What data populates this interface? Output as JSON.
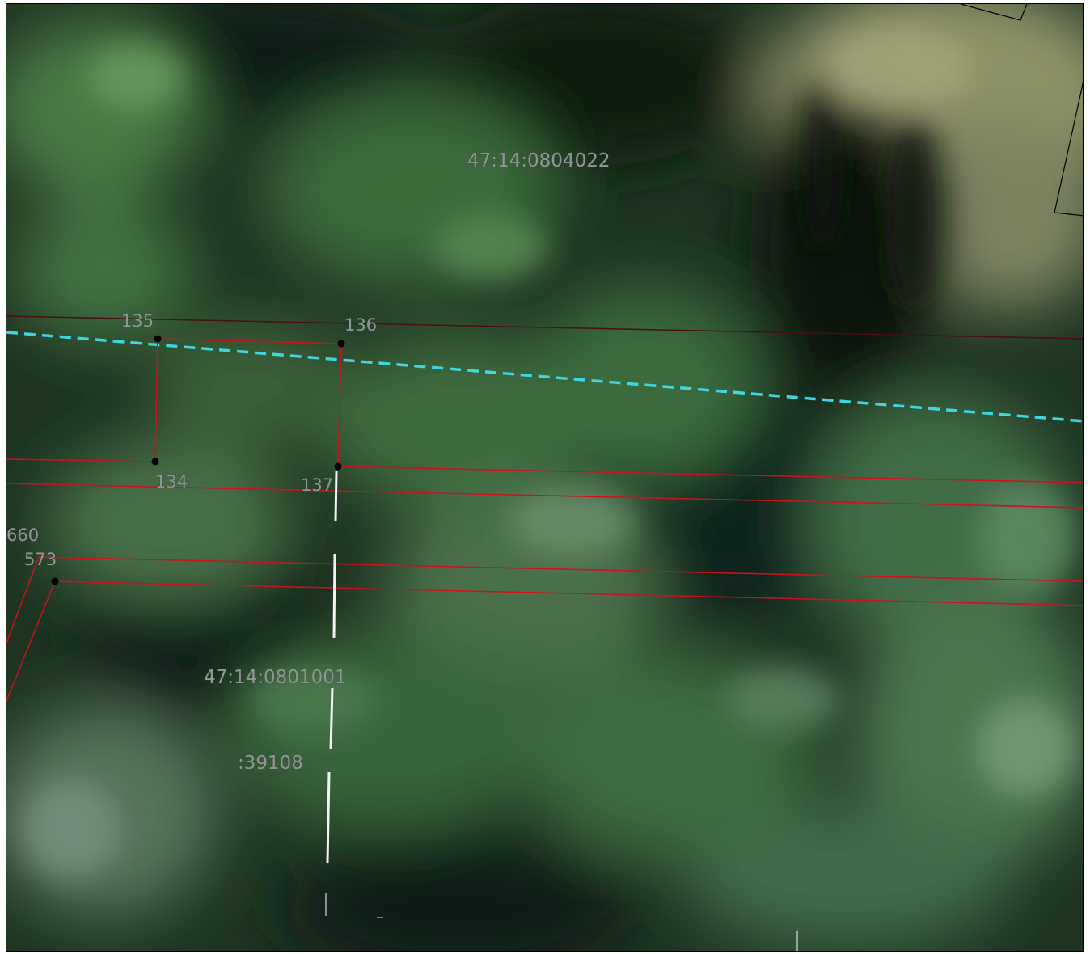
{
  "map": {
    "parcel_labels": {
      "north": "47:14:0804022",
      "south": "47:14:0801001",
      "sub": ":39108"
    },
    "point_labels": {
      "p135": "135",
      "p136": "136",
      "p134": "134",
      "p137": "137",
      "p660": "660",
      "p573": "573"
    },
    "colors": {
      "boundary_red": "#c8141e",
      "boundary_dark": "#4a0d10",
      "dashed_cyan": "#3fd6e0",
      "white_line": "#f2f2f2",
      "frame_black": "#000000",
      "label_grey": "#8e9796"
    }
  }
}
